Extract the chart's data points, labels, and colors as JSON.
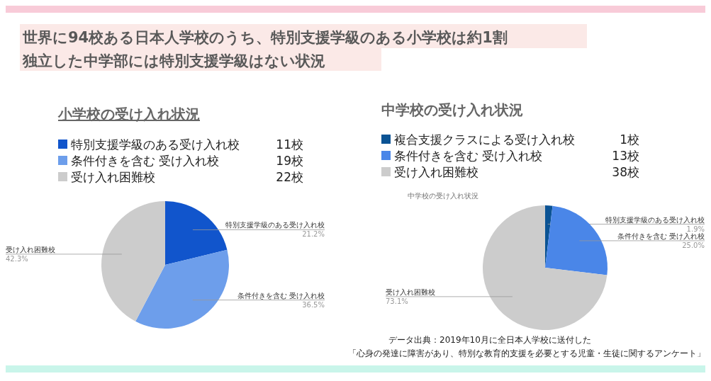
{
  "chart_data": [
    {
      "type": "pie",
      "title": "小学校の受け入れ状況",
      "annotations": [
        "世界に94校ある日本人学校のうち、特別支援学級のある小学校は約1割",
        "独立した中学部には特別支援学級はない状況",
        "特別支援学級のある受け入れ校　11校",
        "条件付きを含む 受け入れ校　19校",
        "受け入れ困難校　22校"
      ],
      "categories": [
        "特別支援学級のある受け入れ校",
        "条件付きを含む 受け入れ校",
        "受け入れ困難校"
      ],
      "values": [
        21.2,
        36.5,
        42.3
      ],
      "value_labels": [
        "21.2%",
        "36.5%",
        "42.3%"
      ],
      "colors": [
        "#1155cc",
        "#6d9eeb",
        "#cccccc"
      ]
    },
    {
      "type": "pie",
      "title": "中学校の受け入れ状況",
      "subtitle": "中学校の受け入れ状況",
      "annotations": [
        "複合支援クラスによる受け入れ校　1校",
        "条件付きを含む 受け入れ校　13校",
        "受け入れ困難校　38校",
        "データ出典：2019年10月に全日本人学校に送付した",
        "「心身の発達に障害があり、特別な教育的支援を必要とする児童・生徒に関するアンケート」"
      ],
      "categories": [
        "特別支援学級のある受け入れ校",
        "条件付きを含む 受け入れ校",
        "受け入れ困難校"
      ],
      "values": [
        1.9,
        25.0,
        73.1
      ],
      "value_labels": [
        "1.9%",
        "25.0%",
        "73.1%"
      ],
      "colors": [
        "#0b5394",
        "#4a86e8",
        "#cccccc"
      ]
    }
  ]
}
